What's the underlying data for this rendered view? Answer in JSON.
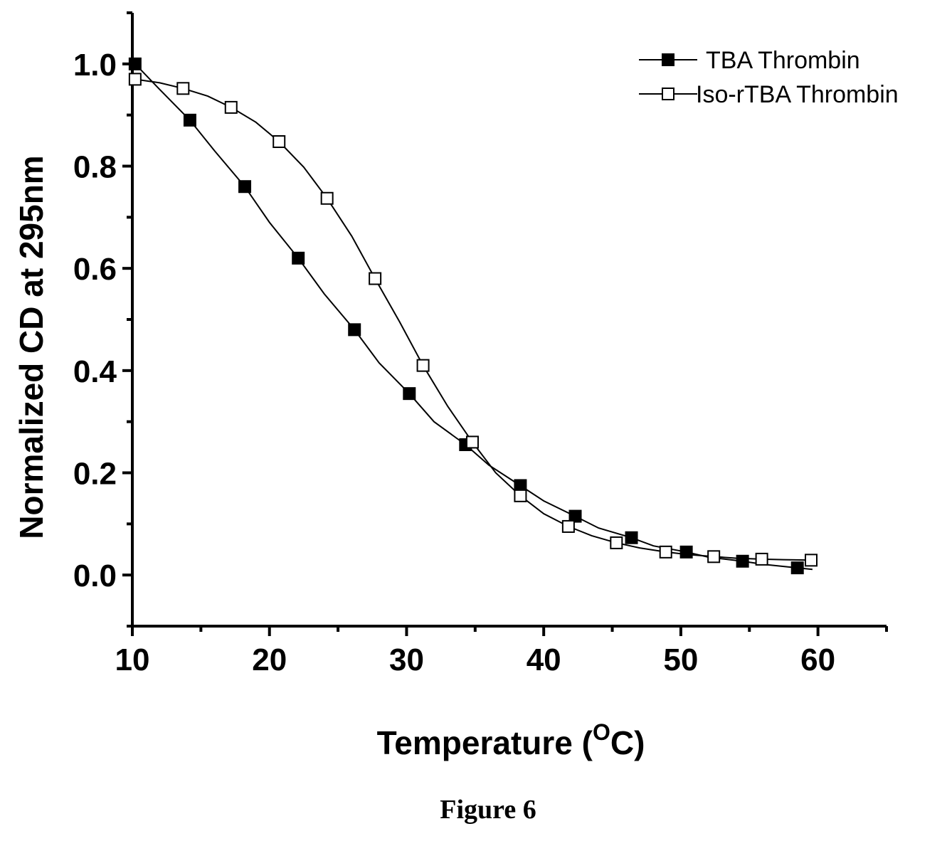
{
  "chart_data": {
    "type": "line",
    "xlabel": "Temperature (",
    "xlabel_superscript": "O",
    "xlabel_suffix": "C)",
    "ylabel": "Normalized CD at 295nm",
    "caption": "Figure 6",
    "xlim": [
      10,
      65
    ],
    "ylim": [
      -0.1,
      1.1
    ],
    "x_ticks": [
      10,
      20,
      30,
      40,
      50,
      60
    ],
    "x_tick_labels": [
      "10",
      "20",
      "30",
      "40",
      "50",
      "60"
    ],
    "y_ticks": [
      0.0,
      0.2,
      0.4,
      0.6,
      0.8,
      1.0
    ],
    "y_tick_labels": [
      "0.0",
      "0.2",
      "0.4",
      "0.6",
      "0.8",
      "1.0"
    ],
    "legend_position": "top-right",
    "grid": false,
    "series": [
      {
        "name": "TBA Thrombin",
        "marker": "filled-square",
        "color": "#000000",
        "x": [
          10.2,
          14.2,
          18.2,
          22.1,
          26.2,
          30.2,
          34.3,
          38.3,
          42.3,
          46.4,
          50.4,
          54.5,
          58.5
        ],
        "y": [
          1.0,
          0.89,
          0.76,
          0.62,
          0.48,
          0.355,
          0.255,
          0.175,
          0.115,
          0.073,
          0.045,
          0.027,
          0.014
        ],
        "curve_x": [
          10.2,
          12,
          14.2,
          16,
          18.2,
          20,
          22.1,
          24,
          26.2,
          28,
          30.2,
          32,
          34.3,
          36,
          38.3,
          40,
          42.3,
          44,
          46.4,
          48,
          50.4,
          52,
          54.5,
          56,
          58.5,
          59.6
        ],
        "curve_y": [
          1.0,
          0.95,
          0.89,
          0.83,
          0.76,
          0.69,
          0.62,
          0.55,
          0.48,
          0.415,
          0.355,
          0.3,
          0.255,
          0.215,
          0.175,
          0.145,
          0.115,
          0.092,
          0.073,
          0.057,
          0.045,
          0.035,
          0.027,
          0.021,
          0.014,
          0.011
        ]
      },
      {
        "name": "Iso-rTBA Thrombin",
        "marker": "open-square",
        "color": "#000000",
        "x": [
          10.2,
          13.7,
          17.2,
          20.7,
          24.2,
          27.7,
          31.2,
          34.8,
          38.3,
          41.8,
          45.3,
          48.9,
          52.4,
          55.9,
          59.5
        ],
        "y": [
          0.97,
          0.952,
          0.915,
          0.848,
          0.737,
          0.58,
          0.41,
          0.26,
          0.155,
          0.095,
          0.063,
          0.045,
          0.036,
          0.031,
          0.029
        ],
        "curve_x": [
          10.2,
          12,
          13.7,
          15.5,
          17.2,
          19,
          20.7,
          22.5,
          24.2,
          26,
          27.7,
          29.5,
          31.2,
          33,
          34.8,
          36.5,
          38.3,
          40,
          41.8,
          43.5,
          45.3,
          47,
          48.9,
          50.5,
          52.4,
          54,
          55.9,
          57.5,
          59.5
        ],
        "curve_y": [
          0.97,
          0.963,
          0.952,
          0.937,
          0.915,
          0.886,
          0.848,
          0.798,
          0.737,
          0.663,
          0.58,
          0.495,
          0.41,
          0.33,
          0.26,
          0.2,
          0.155,
          0.12,
          0.095,
          0.077,
          0.063,
          0.053,
          0.045,
          0.04,
          0.036,
          0.033,
          0.031,
          0.03,
          0.029
        ]
      }
    ]
  }
}
